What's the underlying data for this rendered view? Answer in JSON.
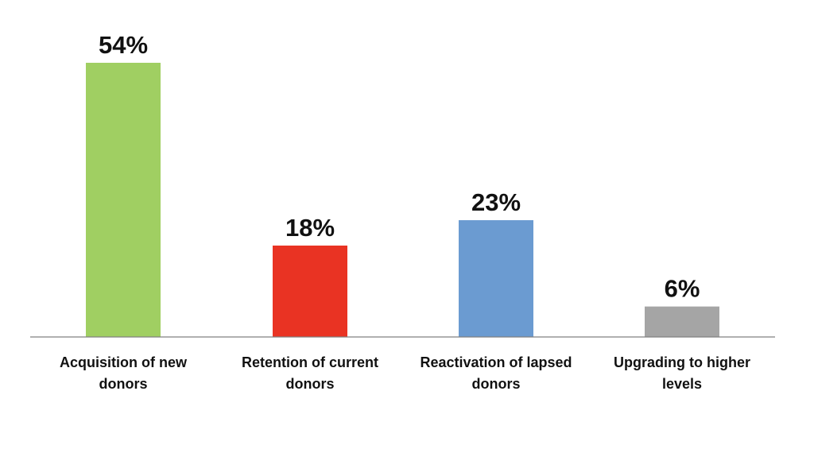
{
  "chart_data": {
    "type": "bar",
    "title": "",
    "xlabel": "",
    "ylabel": "",
    "ylim": [
      0,
      54
    ],
    "grid": false,
    "legend": "none",
    "unit": "%",
    "categories": [
      [
        "Acquisition of new",
        "donors"
      ],
      [
        "Retention of current",
        "donors"
      ],
      [
        "Reactivation of lapsed",
        "donors"
      ],
      [
        "Upgrading to higher",
        "levels"
      ]
    ],
    "values": [
      54,
      18,
      23,
      6
    ],
    "value_labels": [
      "54%",
      "18%",
      "23%",
      "6%"
    ],
    "colors": [
      "#a0cf62",
      "#e93323",
      "#6b9bd1",
      "#a5a5a5"
    ],
    "axis_color": "#808080"
  }
}
